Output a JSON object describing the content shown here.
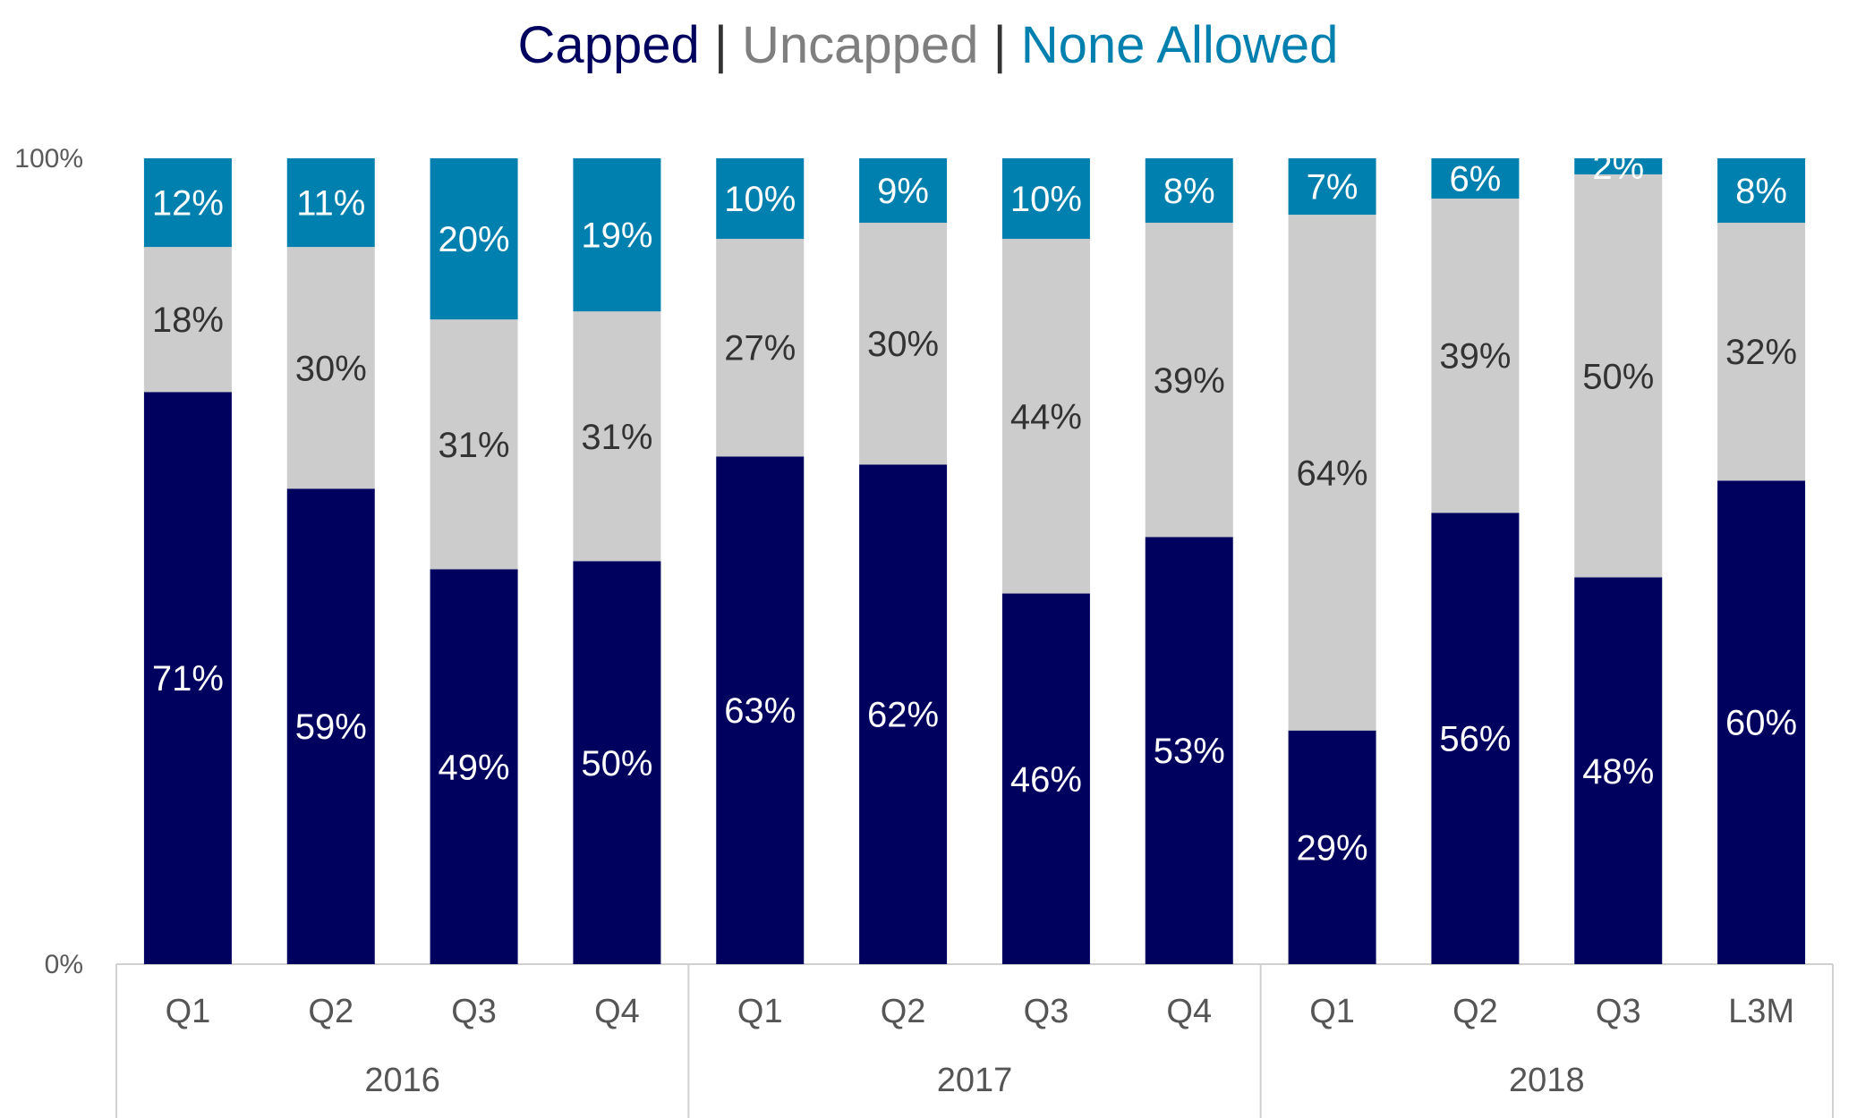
{
  "title": {
    "capped": "Capped",
    "sep1": " | ",
    "uncapped": "Uncapped",
    "sep2": " | ",
    "none_allowed": "None Allowed"
  },
  "colors": {
    "capped": "#00005e",
    "uncapped": "#cccccc",
    "none_allowed": "#0080ae",
    "separator": "#333333",
    "label_dark": "#333333",
    "label_light": "#ffffff",
    "axis": "#d0d0d0"
  },
  "chart_data": {
    "type": "bar",
    "stacked": true,
    "categories": [
      "Q1",
      "Q2",
      "Q3",
      "Q4",
      "Q1",
      "Q2",
      "Q3",
      "Q4",
      "Q1",
      "Q2",
      "Q3",
      "L3M"
    ],
    "groups": [
      {
        "label": "2016",
        "count": 4
      },
      {
        "label": "2017",
        "count": 4
      },
      {
        "label": "2018",
        "count": 4
      }
    ],
    "series": [
      {
        "name": "Capped",
        "values": [
          71,
          59,
          49,
          50,
          63,
          62,
          46,
          53,
          29,
          56,
          48,
          60
        ]
      },
      {
        "name": "Uncapped",
        "values": [
          18,
          30,
          31,
          31,
          27,
          30,
          44,
          39,
          64,
          39,
          50,
          32
        ]
      },
      {
        "name": "None Allowed",
        "values": [
          12,
          11,
          20,
          19,
          10,
          9,
          10,
          8,
          7,
          6,
          2,
          8
        ]
      }
    ],
    "yticks": [
      "0%",
      "100%"
    ],
    "ylim": [
      0,
      100
    ],
    "grid": false,
    "legend": "title"
  }
}
